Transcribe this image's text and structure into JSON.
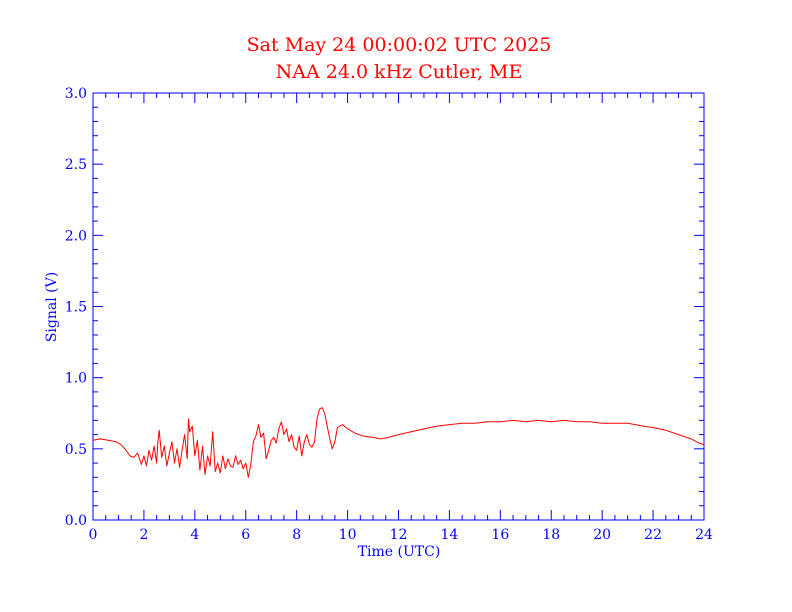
{
  "chart_data": {
    "type": "line",
    "title": "Sat May 24 00:00:02 UTC 2025",
    "subtitle": "NAA 24.0 kHz Cutler, ME",
    "xlabel": "Time (UTC)",
    "ylabel": "Signal (V)",
    "xlim": [
      0,
      24
    ],
    "ylim": [
      0,
      3.0
    ],
    "x_ticks": [
      "0",
      "2",
      "4",
      "6",
      "8",
      "10",
      "12",
      "14",
      "16",
      "18",
      "20",
      "22",
      "24"
    ],
    "y_ticks": [
      "0.0",
      "0.5",
      "1.0",
      "1.5",
      "2.0",
      "2.5",
      "3.0"
    ],
    "grid": false,
    "colors": {
      "axes": "#0000ff",
      "line": "#ff0000",
      "title": "#ff0000"
    },
    "series": [
      {
        "x": [
          0.0,
          0.3,
          0.6,
          0.9,
          1.1,
          1.3,
          1.45,
          1.6,
          1.75,
          1.9,
          2.0,
          2.1,
          2.2,
          2.3,
          2.4,
          2.5,
          2.55,
          2.6,
          2.7,
          2.8,
          2.9,
          3.0,
          3.1,
          3.2,
          3.3,
          3.4,
          3.5,
          3.6,
          3.7,
          3.75,
          3.8,
          3.9,
          4.0,
          4.1,
          4.2,
          4.3,
          4.4,
          4.5,
          4.6,
          4.7,
          4.8,
          4.9,
          5.0,
          5.1,
          5.2,
          5.3,
          5.4,
          5.5,
          5.6,
          5.7,
          5.8,
          5.9,
          6.0,
          6.1,
          6.2,
          6.3,
          6.4,
          6.5,
          6.6,
          6.7,
          6.8,
          6.9,
          7.0,
          7.1,
          7.2,
          7.3,
          7.4,
          7.5,
          7.6,
          7.7,
          7.8,
          7.9,
          8.0,
          8.1,
          8.2,
          8.3,
          8.4,
          8.5,
          8.6,
          8.7,
          8.8,
          8.9,
          9.0,
          9.1,
          9.2,
          9.3,
          9.4,
          9.5,
          9.6,
          9.8,
          10.0,
          10.3,
          10.6,
          11.0,
          11.3,
          11.6,
          12.0,
          12.5,
          13.0,
          13.5,
          14.0,
          14.5,
          15.0,
          15.5,
          16.0,
          16.5,
          17.0,
          17.5,
          18.0,
          18.5,
          19.0,
          19.5,
          20.0,
          20.5,
          21.0,
          21.3,
          21.6,
          22.0,
          22.5,
          23.0,
          23.5,
          23.8,
          24.0
        ],
        "values": [
          0.56,
          0.57,
          0.56,
          0.55,
          0.53,
          0.49,
          0.45,
          0.44,
          0.47,
          0.39,
          0.45,
          0.38,
          0.49,
          0.42,
          0.52,
          0.4,
          0.55,
          0.63,
          0.44,
          0.52,
          0.38,
          0.47,
          0.55,
          0.4,
          0.5,
          0.37,
          0.49,
          0.6,
          0.43,
          0.71,
          0.62,
          0.66,
          0.45,
          0.56,
          0.35,
          0.52,
          0.32,
          0.45,
          0.38,
          0.62,
          0.34,
          0.4,
          0.33,
          0.45,
          0.36,
          0.43,
          0.38,
          0.37,
          0.45,
          0.39,
          0.42,
          0.36,
          0.4,
          0.3,
          0.39,
          0.55,
          0.59,
          0.67,
          0.58,
          0.61,
          0.43,
          0.49,
          0.56,
          0.58,
          0.54,
          0.64,
          0.69,
          0.6,
          0.64,
          0.55,
          0.6,
          0.51,
          0.49,
          0.59,
          0.45,
          0.55,
          0.6,
          0.53,
          0.51,
          0.55,
          0.71,
          0.78,
          0.79,
          0.75,
          0.66,
          0.57,
          0.5,
          0.55,
          0.65,
          0.67,
          0.64,
          0.61,
          0.59,
          0.58,
          0.57,
          0.58,
          0.6,
          0.62,
          0.64,
          0.66,
          0.67,
          0.68,
          0.68,
          0.69,
          0.69,
          0.7,
          0.69,
          0.7,
          0.69,
          0.7,
          0.69,
          0.69,
          0.68,
          0.68,
          0.68,
          0.67,
          0.66,
          0.65,
          0.63,
          0.6,
          0.57,
          0.54,
          0.53
        ]
      }
    ]
  }
}
